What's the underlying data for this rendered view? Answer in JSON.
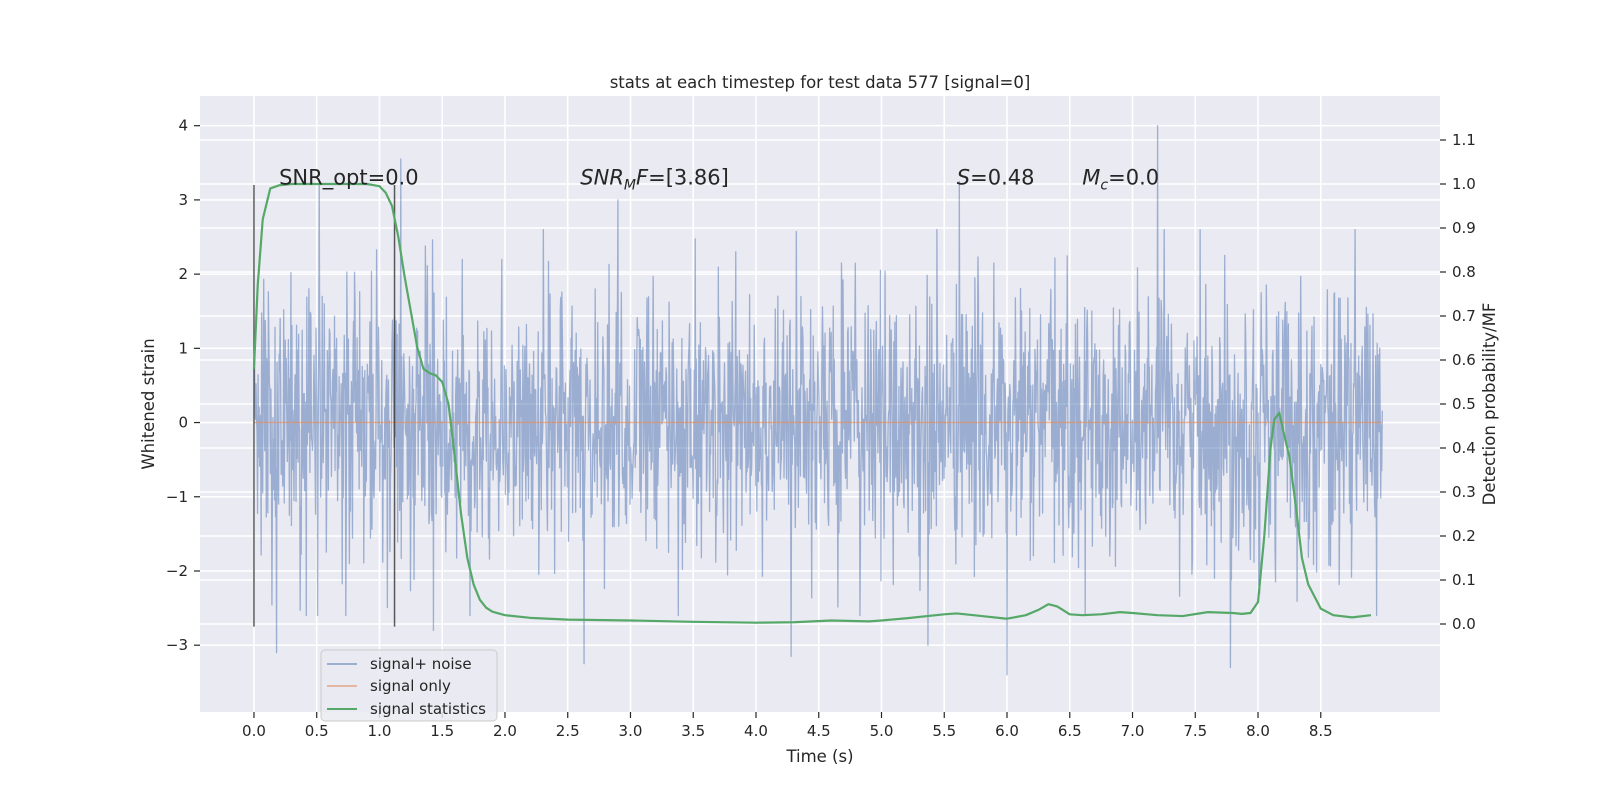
{
  "chart_data": {
    "type": "line",
    "title": "stats at each timestep for test data 577 [signal=0]",
    "xlabel": "Time (s)",
    "ylabel": "Whitened strain",
    "ylabel_right": "Detection probability/MF",
    "xlim": [
      -0.43,
      9.45
    ],
    "ylim": [
      -3.9,
      4.4
    ],
    "ylim_right": [
      -0.2,
      1.2
    ],
    "x_ticks": [
      0.0,
      0.5,
      1.0,
      1.5,
      2.0,
      2.5,
      3.0,
      3.5,
      4.0,
      4.5,
      5.0,
      5.5,
      6.0,
      6.5,
      7.0,
      7.5,
      8.0,
      8.5
    ],
    "x_tick_labels": [
      "0.0",
      "0.5",
      "1.0",
      "1.5",
      "2.0",
      "2.5",
      "3.0",
      "3.5",
      "4.0",
      "4.5",
      "5.0",
      "5.5",
      "6.0",
      "6.5",
      "7.0",
      "7.5",
      "8.0",
      "8.5"
    ],
    "y_ticks": [
      -3,
      -2,
      -1,
      0,
      1,
      2,
      3,
      4
    ],
    "y_tick_labels": [
      "−3",
      "−2",
      "−1",
      "0",
      "1",
      "2",
      "3",
      "4"
    ],
    "y_right_ticks": [
      0.0,
      0.1,
      0.2,
      0.3,
      0.4,
      0.5,
      0.6,
      0.7,
      0.8,
      0.9,
      1.0,
      1.1
    ],
    "y_right_tick_labels": [
      "0.0",
      "0.1",
      "0.2",
      "0.3",
      "0.4",
      "0.5",
      "0.6",
      "0.7",
      "0.8",
      "0.9",
      "1.0",
      "1.1"
    ],
    "grid": true,
    "legend_position": "lower-left",
    "series": [
      {
        "name": "signal+ noise",
        "color": "#4c72b0",
        "style": "dense noise, std ~0.9, t from 0 to 9",
        "t_start": 0.0,
        "t_end": 8.99,
        "std": 0.9,
        "peaks": [
          [
            0.52,
            3.2
          ],
          [
            1.17,
            3.55
          ],
          [
            2.9,
            3.0
          ],
          [
            5.62,
            3.25
          ],
          [
            7.2,
            4.0
          ],
          [
            1.43,
            -2.8
          ],
          [
            2.63,
            -3.25
          ],
          [
            4.28,
            -3.15
          ],
          [
            5.37,
            -3.0
          ],
          [
            6.0,
            -3.4
          ],
          [
            7.78,
            -3.3
          ],
          [
            0.18,
            -3.1
          ]
        ]
      },
      {
        "name": "signal only",
        "color": "#dd8452",
        "x": [
          0.0,
          8.99
        ],
        "y": [
          0.0,
          0.0
        ]
      },
      {
        "name": "signal statistics",
        "color": "#55a868",
        "axis": "right",
        "x": [
          0.0,
          0.03,
          0.07,
          0.13,
          0.2,
          0.3,
          0.5,
          0.7,
          0.9,
          1.0,
          1.05,
          1.1,
          1.15,
          1.2,
          1.25,
          1.3,
          1.35,
          1.4,
          1.45,
          1.5,
          1.55,
          1.6,
          1.65,
          1.7,
          1.75,
          1.8,
          1.85,
          1.9,
          2.0,
          2.2,
          2.5,
          3.0,
          3.5,
          4.0,
          4.3,
          4.6,
          4.9,
          5.0,
          5.2,
          5.5,
          5.6,
          5.8,
          6.0,
          6.15,
          6.25,
          6.33,
          6.4,
          6.5,
          6.6,
          6.75,
          6.9,
          7.0,
          7.2,
          7.4,
          7.6,
          7.8,
          7.87,
          7.94,
          8.0,
          8.05,
          8.1,
          8.13,
          8.17,
          8.2,
          8.25,
          8.3,
          8.35,
          8.4,
          8.5,
          8.6,
          8.75,
          8.9
        ],
        "y": [
          0.58,
          0.77,
          0.92,
          0.99,
          0.997,
          1.0,
          1.0,
          1.0,
          1.0,
          0.995,
          0.98,
          0.95,
          0.88,
          0.79,
          0.71,
          0.63,
          0.58,
          0.57,
          0.565,
          0.55,
          0.5,
          0.38,
          0.25,
          0.15,
          0.09,
          0.055,
          0.037,
          0.028,
          0.02,
          0.014,
          0.01,
          0.008,
          0.005,
          0.003,
          0.004,
          0.008,
          0.006,
          0.008,
          0.013,
          0.022,
          0.024,
          0.018,
          0.012,
          0.02,
          0.032,
          0.045,
          0.04,
          0.022,
          0.02,
          0.022,
          0.027,
          0.025,
          0.02,
          0.018,
          0.027,
          0.025,
          0.023,
          0.025,
          0.05,
          0.2,
          0.4,
          0.465,
          0.48,
          0.44,
          0.38,
          0.27,
          0.15,
          0.09,
          0.035,
          0.02,
          0.015,
          0.02
        ]
      }
    ],
    "vertical_lines": [
      {
        "x": 0.0,
        "y0": -2.75,
        "y1": 3.2
      },
      {
        "x": 1.12,
        "y0": -2.75,
        "y1": 3.2
      }
    ],
    "annotations": [
      {
        "kind": "plain",
        "x": 0.2,
        "y": 3.3,
        "text": "SNR_opt=0.0"
      },
      {
        "kind": "sub",
        "x": 2.6,
        "y": 3.3,
        "base": "SNR",
        "sub": "M",
        "rest": "F",
        "value": "=[3.86]"
      },
      {
        "kind": "italic",
        "x": 5.6,
        "y": 3.3,
        "base": "S",
        "value": "=0.48"
      },
      {
        "kind": "sub",
        "x": 6.6,
        "y": 3.3,
        "base": "M",
        "sub": "c",
        "rest": "",
        "value": "=0.0"
      }
    ]
  }
}
